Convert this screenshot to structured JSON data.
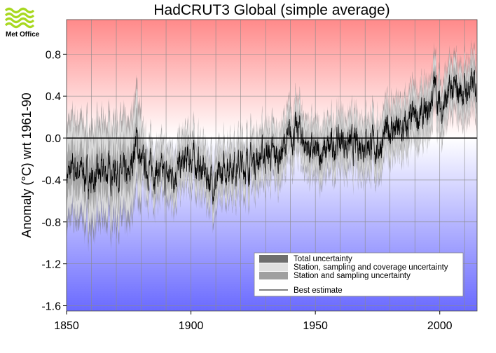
{
  "logo": {
    "text": "Met Office",
    "color": "#a8d820"
  },
  "chart_data": {
    "type": "line",
    "title": "HadCRUT3 Global (simple average)",
    "xlabel": "",
    "ylabel": "Anomaly (°C) wrt 1961-90",
    "xlim": [
      1850,
      2015
    ],
    "ylim": [
      -1.65,
      1.13
    ],
    "xticks": [
      1850,
      1900,
      1950,
      2000
    ],
    "yticks": [
      -1.6,
      -1.2,
      -0.8,
      -0.4,
      0.0,
      0.4,
      0.8
    ],
    "ytick_labels": [
      "-1.6",
      "-1.2",
      "-0.8",
      "-0.4",
      "0.0",
      "0.4",
      "0.8"
    ],
    "grid": true,
    "legend_position": "bottom-right",
    "background": {
      "warm_color": "#ff8a8a",
      "cool_color": "#6a6aff"
    },
    "legend": [
      {
        "label": "Total uncertainty",
        "color": "#6e6e6e"
      },
      {
        "label": "Station, sampling and coverage uncertainty",
        "color": "#e0e0e0"
      },
      {
        "label": "Station and sampling uncertainty",
        "color": "#a0a0a0"
      },
      {
        "label": "Best estimate",
        "color": "#000000"
      }
    ],
    "series": [
      {
        "name": "Best estimate",
        "x": [
          1850,
          1855,
          1860,
          1865,
          1870,
          1875,
          1878,
          1880,
          1885,
          1890,
          1895,
          1900,
          1905,
          1910,
          1915,
          1920,
          1925,
          1930,
          1935,
          1940,
          1944,
          1945,
          1950,
          1955,
          1960,
          1965,
          1970,
          1975,
          1980,
          1985,
          1990,
          1995,
          1998,
          2000,
          2005,
          2010,
          2014
        ],
        "y": [
          -0.35,
          -0.3,
          -0.4,
          -0.33,
          -0.3,
          -0.4,
          0.0,
          -0.25,
          -0.3,
          -0.38,
          -0.3,
          -0.18,
          -0.32,
          -0.45,
          -0.25,
          -0.27,
          -0.22,
          -0.15,
          -0.18,
          0.02,
          0.08,
          -0.03,
          -0.17,
          -0.12,
          -0.02,
          -0.08,
          -0.02,
          -0.1,
          0.1,
          0.05,
          0.2,
          0.2,
          0.52,
          0.28,
          0.45,
          0.45,
          0.5
        ],
        "band_stat": 0.12,
        "band_cov": 0.22,
        "band_total": 0.28
      }
    ]
  }
}
